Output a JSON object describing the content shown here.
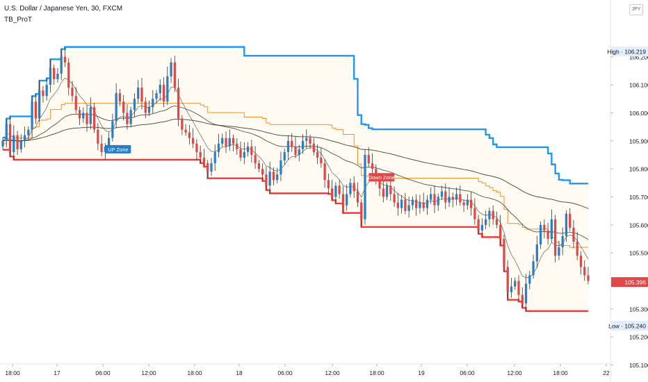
{
  "header": {
    "symbol_line": "U.S. Dollar / Japanese Yen, 30, FXCM",
    "indicator": "TB_ProT",
    "currency_badge": "JPY"
  },
  "chart_data": {
    "type": "candlestick",
    "y_axis": {
      "range": [
        105.05,
        106.3
      ],
      "tick_labels": [
        "106.200",
        "106.100",
        "106.000",
        "105.900",
        "105.800",
        "105.700",
        "105.600",
        "105.500",
        "105.300",
        "105.200",
        "105.100"
      ]
    },
    "x_axis": {
      "tick_labels": [
        "18:00",
        "17",
        "06:00",
        "12:00",
        "18:00",
        "18",
        "06:00",
        "12:00",
        "18:00",
        "19",
        "06:00",
        "12:00",
        "18:00",
        "22"
      ]
    },
    "price_labels": {
      "high": "High · 106.219",
      "last": "105.396",
      "low": "Low · 105.240"
    },
    "annotations": [
      "UP Zone",
      "Down Zone"
    ],
    "colors": {
      "up": "#2a7ec3",
      "down": "#e04848",
      "upper_band": "#2196f3",
      "lower_band": "#f23a3a",
      "mid_band": "#f0902a",
      "ma": "#555555",
      "zone_fill": "#fffbf2"
    },
    "close_series": [
      105.9,
      105.96,
      105.86,
      105.92,
      105.87,
      105.9,
      105.92,
      105.94,
      106.04,
      105.98,
      106.08,
      106.06,
      106.1,
      106.16,
      106.12,
      106.14,
      106.2,
      106.18,
      106.09,
      106.06,
      106.01,
      105.98,
      106.0,
      105.96,
      106.02,
      105.94,
      105.89,
      105.86,
      105.88,
      105.91,
      105.97,
      106.07,
      106.04,
      106.0,
      105.96,
      106.01,
      106.05,
      106.09,
      106.04,
      106.0,
      106.02,
      106.05,
      106.07,
      106.1,
      106.04,
      106.13,
      106.18,
      106.09,
      105.98,
      105.94,
      105.93,
      105.91,
      105.89,
      105.86,
      105.84,
      105.82,
      105.79,
      105.82,
      105.86,
      105.89,
      105.91,
      105.88,
      105.91,
      105.89,
      105.87,
      105.84,
      105.86,
      105.88,
      105.85,
      105.82,
      105.8,
      105.78,
      105.74,
      105.79,
      105.76,
      105.78,
      105.83,
      105.86,
      105.9,
      105.88,
      105.85,
      105.87,
      105.9,
      105.91,
      105.89,
      105.86,
      105.84,
      105.82,
      105.76,
      105.73,
      105.7,
      105.74,
      105.71,
      105.67,
      105.71,
      105.75,
      105.72,
      105.68,
      105.62,
      105.85,
      105.82,
      105.8,
      105.76,
      105.73,
      105.7,
      105.74,
      105.71,
      105.68,
      105.66,
      105.69,
      105.65,
      105.67,
      105.69,
      105.66,
      105.68,
      105.66,
      105.69,
      105.71,
      105.67,
      105.7,
      105.72,
      105.68,
      105.7,
      105.69,
      105.71,
      105.68,
      105.67,
      105.69,
      105.66,
      105.62,
      105.58,
      105.6,
      105.62,
      105.65,
      105.62,
      105.6,
      105.55,
      105.45,
      105.36,
      105.38,
      105.4,
      105.35,
      105.32,
      105.39,
      105.42,
      105.47,
      105.53,
      105.6,
      105.58,
      105.55,
      105.62,
      105.49,
      105.52,
      105.56,
      105.64,
      105.59,
      105.54,
      105.49,
      105.45,
      105.42,
      105.4
    ]
  }
}
